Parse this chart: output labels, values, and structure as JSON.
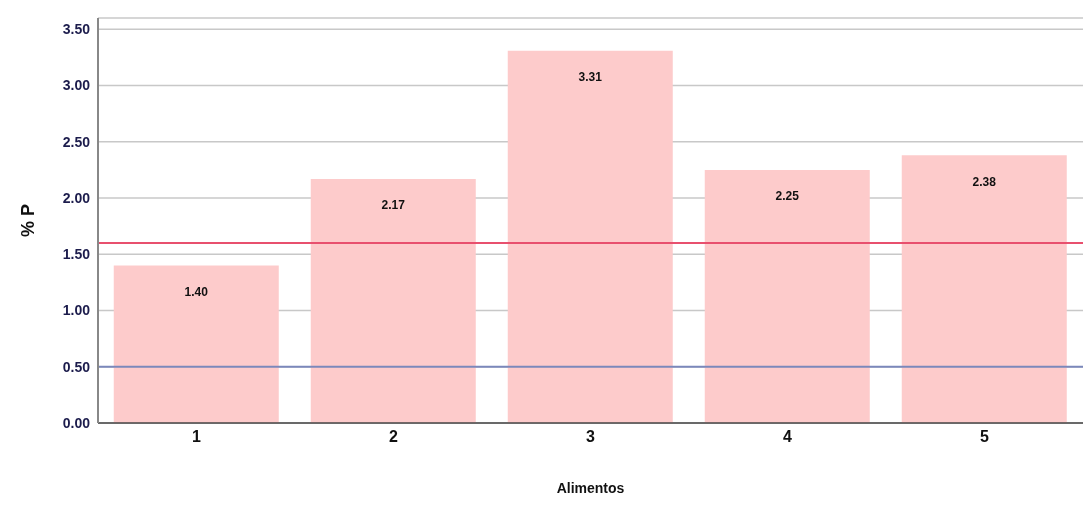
{
  "chart_data": {
    "type": "bar",
    "xlabel": "Alimentos",
    "ylabel": "% P",
    "categories": [
      "1",
      "2",
      "3",
      "4",
      "5"
    ],
    "values": [
      1.4,
      2.17,
      3.31,
      2.25,
      2.38
    ],
    "value_labels": [
      "1.40",
      "2.17",
      "3.31",
      "2.25",
      "2.38"
    ],
    "color": "#fdcbcb",
    "ylim": [
      0,
      3.6
    ],
    "yticks": [
      {
        "value": 0,
        "label": "0.00"
      },
      {
        "value": 0.5,
        "label": "0.50"
      },
      {
        "value": 1,
        "label": "1.00"
      },
      {
        "value": 1.5,
        "label": "1.50"
      },
      {
        "value": 2,
        "label": "2.00"
      },
      {
        "value": 2.5,
        "label": "2.50"
      },
      {
        "value": 3,
        "label": "3.00"
      },
      {
        "value": 3.5,
        "label": "3.50"
      }
    ],
    "grid": "y",
    "ref_lines": [
      {
        "axis": "y",
        "value": 1.6,
        "color": "#e8506e"
      },
      {
        "axis": "y",
        "value": 0.5,
        "color": "#7b88bb"
      }
    ]
  }
}
